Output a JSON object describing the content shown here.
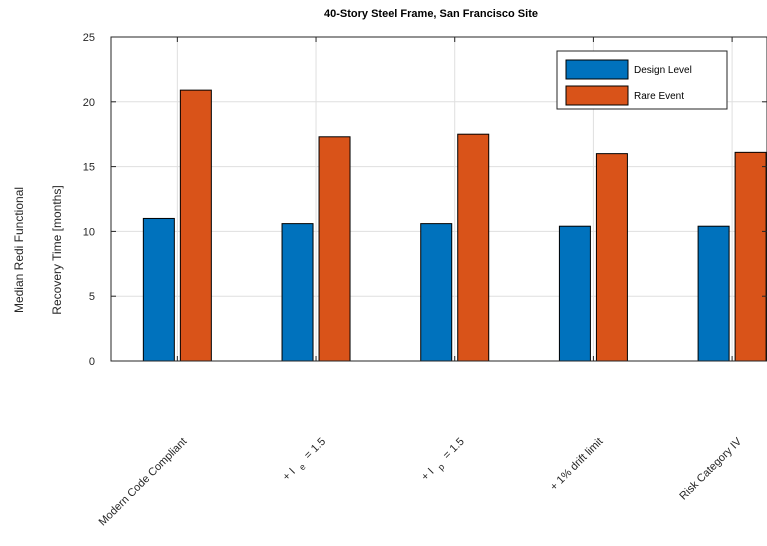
{
  "chart_data": {
    "type": "bar",
    "title": "40-Story Steel Frame, San Francisco Site",
    "ylabel_lines": [
      "Median Redi Functional",
      "Recovery Time [months]"
    ],
    "xlabel": "",
    "ylim": [
      0,
      25
    ],
    "yticks": [
      0,
      5,
      10,
      15,
      20,
      25
    ],
    "grid": true,
    "legend_position": "top-right",
    "categories": [
      {
        "text": "Modern Code Compliant",
        "sub": "",
        "suffix": ""
      },
      {
        "text": "+ I",
        "sub": "e",
        "suffix": " = 1.5"
      },
      {
        "text": "+ I",
        "sub": "p",
        "suffix": " = 1.5"
      },
      {
        "text": "+ 1% drift limit",
        "sub": "",
        "suffix": ""
      },
      {
        "text": "Risk Category IV",
        "sub": "",
        "suffix": ""
      }
    ],
    "series": [
      {
        "name": "Design Level",
        "color": "#0072bd",
        "values": [
          11.0,
          10.6,
          10.6,
          10.4,
          10.4
        ]
      },
      {
        "name": "Rare Event",
        "color": "#d95319",
        "values": [
          20.9,
          17.3,
          17.5,
          16.0,
          16.1
        ]
      }
    ]
  }
}
